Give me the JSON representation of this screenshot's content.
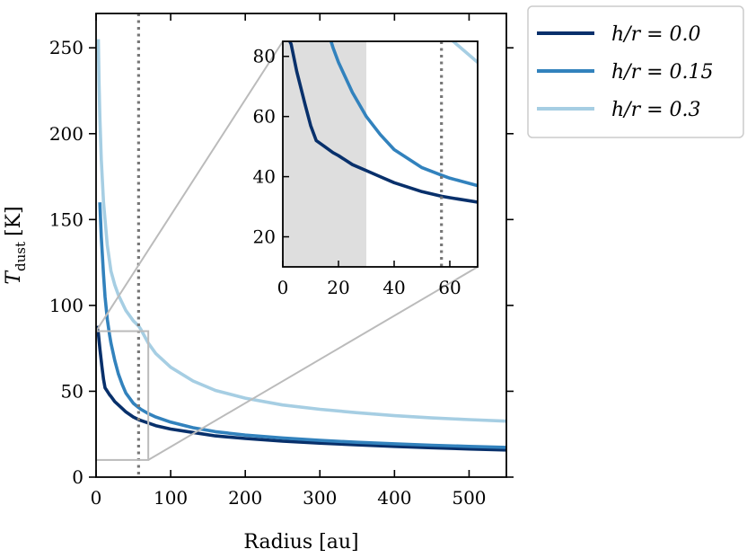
{
  "chart_data": [
    {
      "type": "line",
      "id": "main",
      "xlabel": "Radius [au]",
      "ylabel_main": "T",
      "ylabel_sub": "dust",
      "ylabel_unit": "[K]",
      "xlim": [
        0,
        550
      ],
      "ylim": [
        0,
        270
      ],
      "xticks": [
        0,
        100,
        200,
        300,
        400,
        500
      ],
      "yticks": [
        0,
        50,
        100,
        150,
        200,
        250
      ],
      "vline_x": 57,
      "zoom_box": {
        "x": [
          0,
          70
        ],
        "y": [
          10,
          85
        ]
      },
      "series": [
        {
          "name": "h/r = 0.0",
          "color": "#08306b",
          "x": [
            1,
            3,
            5,
            8,
            10,
            12,
            15,
            18,
            20,
            25,
            30,
            35,
            40,
            50,
            57,
            60,
            70,
            80,
            100,
            130,
            160,
            200,
            250,
            300,
            350,
            400,
            450,
            500,
            550
          ],
          "y": [
            88,
            84,
            75,
            64,
            57,
            52,
            50,
            48,
            47,
            44,
            42,
            40,
            38,
            35,
            33.5,
            33,
            31.5,
            30,
            28,
            26,
            24,
            22.5,
            21,
            19.8,
            18.8,
            17.9,
            17.1,
            16.4,
            15.8
          ]
        },
        {
          "name": "h/r = 0.15",
          "color": "#3282bd",
          "x": [
            5,
            7,
            10,
            12,
            15,
            18,
            20,
            25,
            30,
            35,
            40,
            50,
            57,
            60,
            70,
            80,
            100,
            130,
            160,
            200,
            250,
            300,
            350,
            400,
            450,
            500,
            550
          ],
          "y": [
            160,
            140,
            118,
            105,
            92,
            83,
            78,
            68,
            60,
            54,
            49,
            43,
            40.5,
            39.5,
            37,
            35,
            32,
            28.8,
            26.5,
            24.5,
            22.8,
            21.4,
            20.3,
            19.4,
            18.6,
            17.9,
            17.3
          ]
        },
        {
          "name": "h/r = 0.3",
          "color": "#a6cee3",
          "x": [
            3,
            4,
            5,
            7,
            10,
            15,
            20,
            25,
            30,
            40,
            50,
            57,
            60,
            70,
            80,
            100,
            130,
            160,
            200,
            250,
            300,
            350,
            400,
            450,
            500,
            550
          ],
          "y": [
            255,
            230,
            210,
            185,
            160,
            135,
            120,
            112,
            106,
            97,
            91,
            88,
            86,
            78,
            72,
            64,
            56,
            50.5,
            46,
            42,
            39.5,
            37.5,
            35.8,
            34.5,
            33.5,
            32.6
          ]
        }
      ],
      "legend": {
        "placement": "outside-right-top",
        "entries": [
          "h/r = 0.0",
          "h/r = 0.15",
          "h/r = 0.3"
        ]
      }
    },
    {
      "type": "line",
      "id": "inset",
      "xlim": [
        0,
        70
      ],
      "ylim": [
        10,
        85
      ],
      "xticks": [
        0,
        20,
        40,
        60
      ],
      "yticks": [
        20,
        40,
        60,
        80
      ],
      "shaded_x": [
        0,
        30
      ],
      "vline_x": 57
    }
  ]
}
